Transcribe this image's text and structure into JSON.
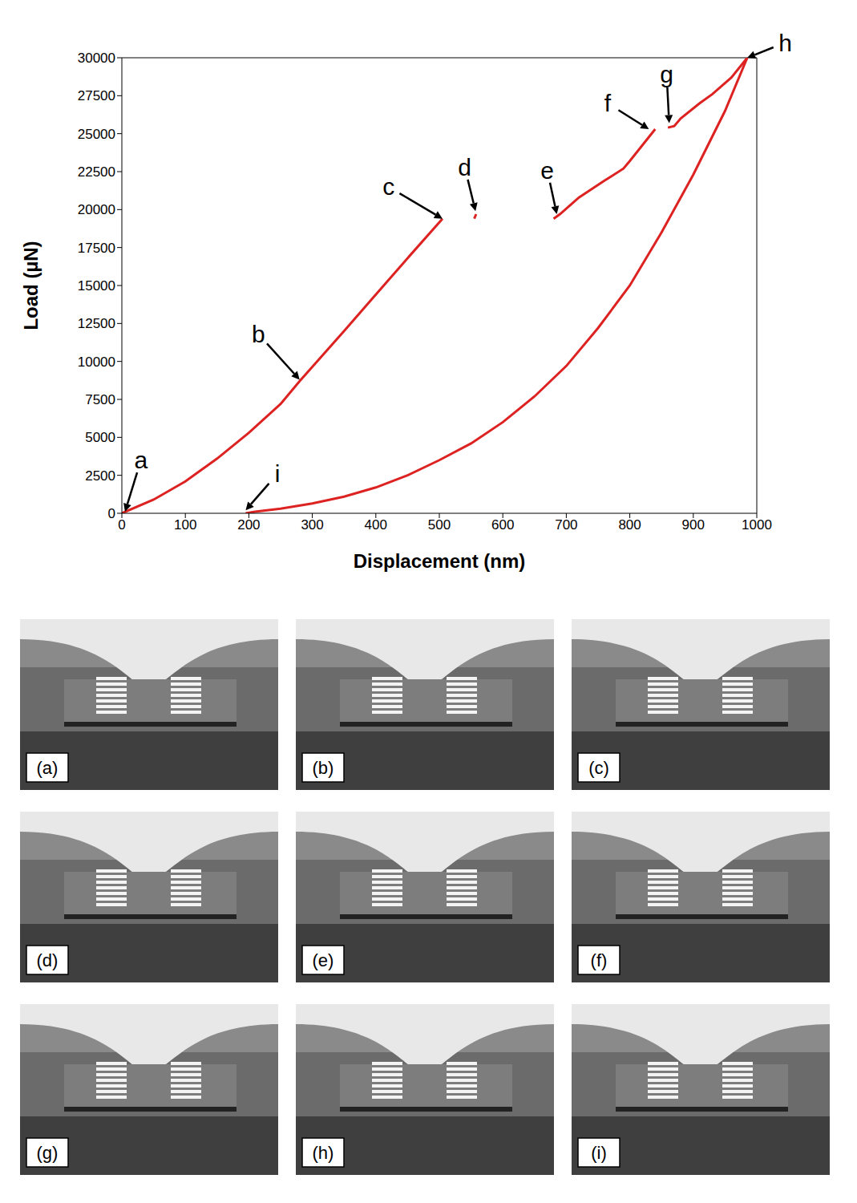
{
  "chart_data": {
    "type": "line",
    "x_label": "Displacement (nm)",
    "y_label": "Load (µN)",
    "xlim": [
      0,
      1000
    ],
    "xticks": [
      0,
      100,
      200,
      300,
      400,
      500,
      600,
      700,
      800,
      900,
      1000
    ],
    "ylim": [
      0,
      30000
    ],
    "yticks": [
      0,
      2500,
      5000,
      7500,
      10000,
      12500,
      15000,
      17500,
      20000,
      22500,
      25000,
      27500,
      30000
    ],
    "color": "#dd2222",
    "grid": false,
    "series": [
      {
        "x": [
          0,
          50,
          100,
          150,
          200,
          250,
          280,
          350,
          400,
          450,
          505
        ],
        "values": [
          0,
          900,
          2100,
          3600,
          5300,
          7200,
          8700,
          12000,
          14400,
          16800,
          19400
        ]
      },
      {
        "x": [
          555,
          558
        ],
        "values": [
          19400,
          19700
        ]
      },
      {
        "x": [
          680,
          690,
          720,
          760,
          790,
          800,
          840
        ],
        "values": [
          19400,
          19700,
          20800,
          21900,
          22700,
          23200,
          25300
        ]
      },
      {
        "x": [
          860,
          870,
          880,
          910,
          930,
          960,
          985
        ],
        "values": [
          25400,
          25500,
          26000,
          27000,
          27600,
          28700,
          30000
        ]
      },
      {
        "x": [
          985,
          950,
          900,
          850,
          800,
          750,
          700,
          650,
          600,
          550,
          500,
          450,
          400,
          350,
          300,
          250,
          210,
          195
        ],
        "values": [
          30000,
          26500,
          22300,
          18500,
          15000,
          12200,
          9700,
          7700,
          6000,
          4600,
          3500,
          2500,
          1700,
          1100,
          650,
          300,
          100,
          0
        ]
      }
    ],
    "annotations": [
      {
        "text": "a",
        "x": 5,
        "y": 100,
        "text_x": 30,
        "text_y": 3500
      },
      {
        "text": "b",
        "x": 280,
        "y": 8800,
        "text_x": 215,
        "text_y": 11800
      },
      {
        "text": "c",
        "x": 505,
        "y": 19400,
        "text_x": 420,
        "text_y": 21500
      },
      {
        "text": "d",
        "x": 557,
        "y": 19900,
        "text_x": 540,
        "text_y": 22800
      },
      {
        "text": "e",
        "x": 685,
        "y": 19700,
        "text_x": 670,
        "text_y": 22600
      },
      {
        "text": "f",
        "x": 830,
        "y": 25300,
        "text_x": 765,
        "text_y": 27000
      },
      {
        "text": "g",
        "x": 862,
        "y": 25700,
        "text_x": 858,
        "text_y": 28900
      },
      {
        "text": "h",
        "x": 985,
        "y": 30000,
        "text_x": 1045,
        "text_y": 31000
      },
      {
        "text": "i",
        "x": 195,
        "y": 200,
        "text_x": 245,
        "text_y": 2600
      }
    ]
  },
  "panels": {
    "labels": [
      "(a)",
      "(b)",
      "(c)",
      "(d)",
      "(e)",
      "(f)",
      "(g)",
      "(h)",
      "(i)"
    ]
  }
}
